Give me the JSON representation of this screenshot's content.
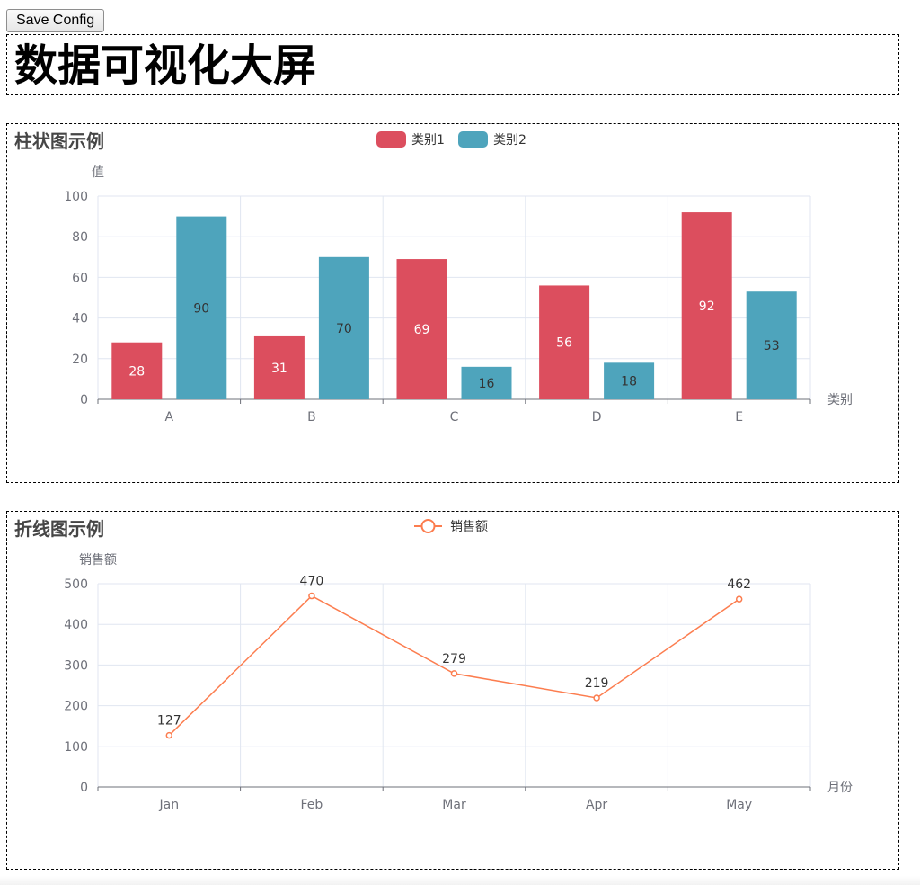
{
  "toolbar": {
    "save_label": "Save Config"
  },
  "page": {
    "title": "数据可视化大屏"
  },
  "chart_data": [
    {
      "type": "bar",
      "title": "柱状图示例",
      "xlabel": "类别",
      "ylabel": "值",
      "categories": [
        "A",
        "B",
        "C",
        "D",
        "E"
      ],
      "series": [
        {
          "name": "类别1",
          "values": [
            28,
            31,
            69,
            56,
            92
          ],
          "color": "#dc4e5e",
          "label_color": "#ffffff"
        },
        {
          "name": "类别2",
          "values": [
            90,
            70,
            16,
            18,
            53
          ],
          "color": "#4ea4bc",
          "label_color": "#333333"
        }
      ],
      "ylim": [
        0,
        100
      ],
      "yticks": [
        0,
        20,
        40,
        60,
        80,
        100
      ],
      "grid": true,
      "legend": "top-center",
      "data_labels": true
    },
    {
      "type": "line",
      "title": "折线图示例",
      "xlabel": "月份",
      "ylabel": "销售额",
      "categories": [
        "Jan",
        "Feb",
        "Mar",
        "Apr",
        "May"
      ],
      "series": [
        {
          "name": "销售额",
          "values": [
            127,
            470,
            279,
            219,
            462
          ],
          "color": "#fc7d4f"
        }
      ],
      "ylim": [
        0,
        500
      ],
      "yticks": [
        0,
        100,
        200,
        300,
        400,
        500
      ],
      "grid": true,
      "legend": "top-center",
      "data_labels": true
    }
  ]
}
